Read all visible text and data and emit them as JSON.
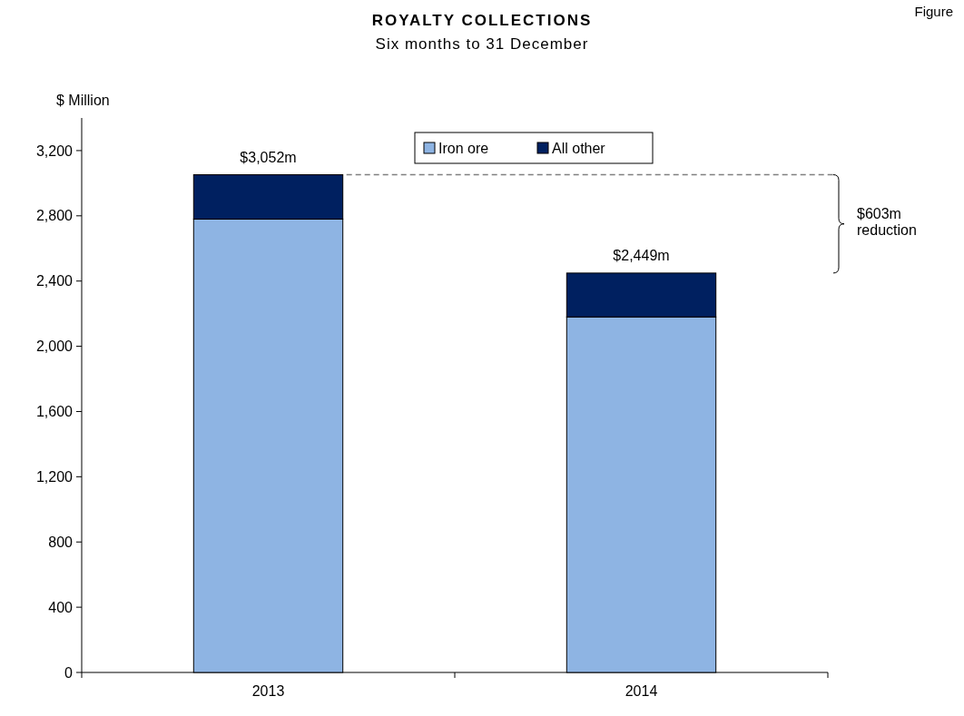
{
  "chart_data": {
    "type": "bar",
    "title": "ROYALTY COLLECTIONS",
    "subtitle": "Six months to 31 December",
    "ylabel": "$ Million",
    "categories": [
      "2013",
      "2014"
    ],
    "stacked": true,
    "series": [
      {
        "name": "Iron ore",
        "color": "#8eb4e3",
        "values": [
          2780,
          2180
        ]
      },
      {
        "name": "All other",
        "color": "#002060",
        "values": [
          272,
          269
        ]
      }
    ],
    "totals": [
      "$3,052m",
      "$2,449m"
    ],
    "ylim": [
      0,
      3400
    ],
    "yticks": [
      0,
      400,
      800,
      {
        "value": 1200,
        "label": "1,200"
      },
      {
        "value": 1600,
        "label": "1,600"
      },
      {
        "value": 2000,
        "label": "2,000"
      },
      {
        "value": 2400,
        "label": "2,400"
      },
      {
        "value": 2800,
        "label": "2,800"
      },
      {
        "value": 3200,
        "label": "3,200"
      }
    ],
    "ref_lines": [
      {
        "axis": "y",
        "value": 3052,
        "color": "#7f7f7f",
        "line_style": "dashed"
      }
    ],
    "annotations": [
      "$603m reduction",
      "Figure"
    ],
    "legend": "top",
    "grid": false
  }
}
